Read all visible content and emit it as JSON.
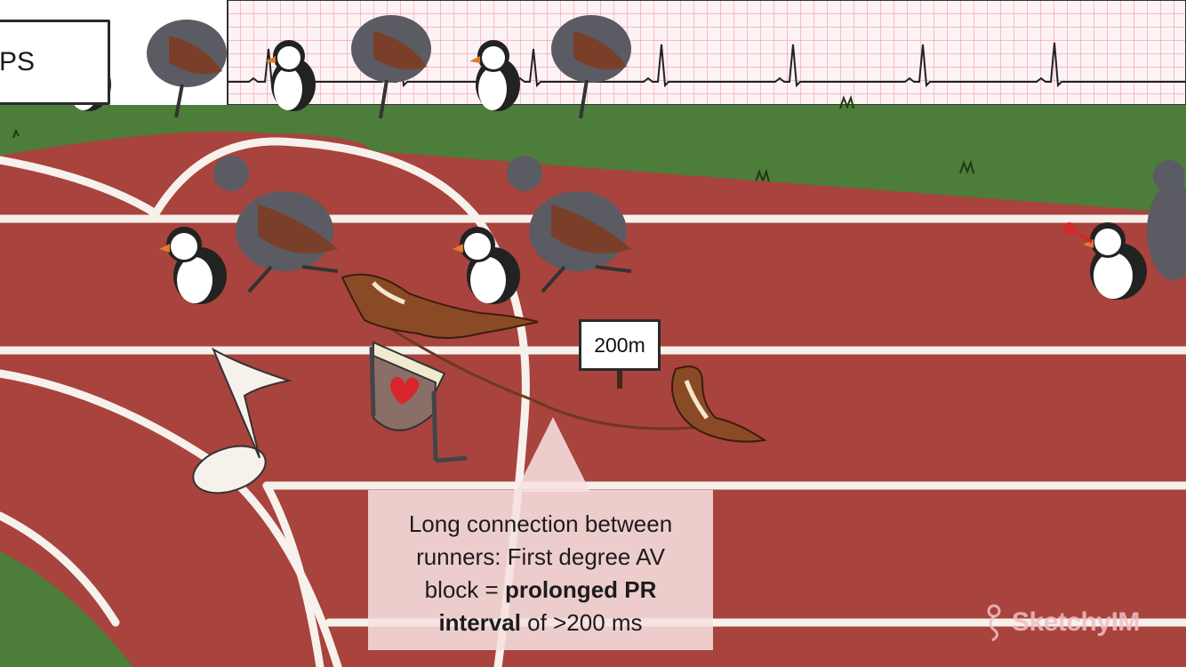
{
  "top_sign": {
    "text": "PS"
  },
  "distance_sign": {
    "text": "200m"
  },
  "caption": {
    "line1": "Long connection between",
    "line2": "runners: First degree AV",
    "line3_prefix": "block = ",
    "line3_bold": "prolonged PR",
    "line4_bold": "interval",
    "line4_suffix": " of >200 ms"
  },
  "branding": {
    "logo_text": "SketchyIM"
  },
  "colors": {
    "track": "#a9433d",
    "grass": "#4d7d3a",
    "ecg_grid": "#f2b8c6",
    "ecg_paper": "#fdf2f4",
    "weasel": "#8b4a26"
  },
  "icons": [
    "heart-icon",
    "music-note-icon",
    "sketchy-logo-icon"
  ]
}
